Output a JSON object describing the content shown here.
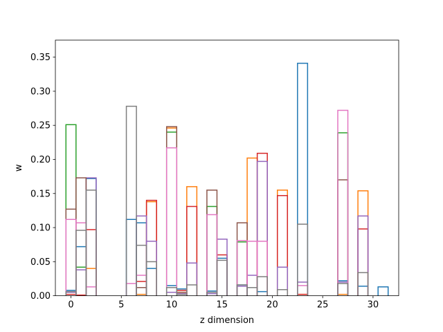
{
  "chart_data": {
    "type": "histogram-step",
    "xlabel": "z dimension",
    "ylabel": "w",
    "xlim": [
      -1.55,
      32.55
    ],
    "ylim": [
      0,
      0.375
    ],
    "xticks": [
      0,
      5,
      10,
      15,
      20,
      25,
      30
    ],
    "xtick_labels": [
      "0",
      "5",
      "10",
      "15",
      "20",
      "25",
      "30"
    ],
    "yticks": [
      0.0,
      0.05,
      0.1,
      0.15,
      0.2,
      0.25,
      0.3,
      0.35
    ],
    "ytick_labels": [
      "0.00",
      "0.05",
      "0.10",
      "0.15",
      "0.20",
      "0.25",
      "0.30",
      "0.35"
    ],
    "bins": [
      0,
      1,
      2,
      3,
      4,
      5,
      6,
      7,
      8,
      9,
      10,
      11,
      12,
      13,
      14,
      15,
      16,
      17,
      18,
      19,
      20,
      21,
      22,
      23,
      24,
      25,
      26,
      27,
      28,
      29,
      30,
      31
    ],
    "series": [
      {
        "color": "#1f77b4",
        "values": [
          0.008,
          0.072,
          0.172,
          0,
          0,
          0,
          0.112,
          0.107,
          0.04,
          0,
          0.015,
          0.01,
          0,
          0,
          0.007,
          0.055,
          0,
          0.016,
          0,
          0.006,
          0,
          0,
          0,
          0.341,
          0,
          0,
          0,
          0.022,
          0,
          0.014,
          0,
          0.013
        ]
      },
      {
        "color": "#ff7f0e",
        "values": [
          0,
          0,
          0.04,
          0,
          0,
          0,
          0,
          0.002,
          0.138,
          0,
          0.246,
          0.005,
          0.16,
          0,
          0,
          0,
          0,
          0,
          0.202,
          0.08,
          0,
          0.155,
          0,
          0.002,
          0,
          0,
          0,
          0.002,
          0,
          0.154,
          0,
          0
        ]
      },
      {
        "color": "#2ca02c",
        "values": [
          0.251,
          0.042,
          0,
          0,
          0,
          0,
          0,
          0.012,
          0,
          0,
          0.24,
          0,
          0,
          0,
          0.131,
          0,
          0,
          0.079,
          0,
          0,
          0,
          0,
          0,
          0,
          0,
          0,
          0,
          0.239,
          0,
          0,
          0,
          0
        ]
      },
      {
        "color": "#d62728",
        "values": [
          0.002,
          0.001,
          0.097,
          0,
          0,
          0,
          0,
          0.021,
          0.14,
          0,
          0,
          0.008,
          0.131,
          0,
          0,
          0.06,
          0,
          0,
          0.08,
          0.209,
          0,
          0.147,
          0,
          0.002,
          0,
          0,
          0,
          0,
          0,
          0.098,
          0,
          0
        ]
      },
      {
        "color": "#9467bd",
        "values": [
          0.005,
          0.038,
          0.173,
          0,
          0,
          0,
          0,
          0.117,
          0.08,
          0,
          0.005,
          0.003,
          0.048,
          0,
          0.003,
          0.083,
          0,
          0.014,
          0.03,
          0.197,
          0,
          0.042,
          0,
          0.02,
          0,
          0,
          0,
          0.02,
          0,
          0.117,
          0,
          0
        ]
      },
      {
        "color": "#8c564b",
        "values": [
          0.127,
          0.173,
          0,
          0,
          0,
          0,
          0,
          0.012,
          0,
          0,
          0.248,
          0.005,
          0,
          0,
          0.155,
          0,
          0,
          0.107,
          0,
          0,
          0,
          0,
          0,
          0,
          0,
          0,
          0,
          0.17,
          0,
          0,
          0,
          0
        ]
      },
      {
        "color": "#e377c2",
        "values": [
          0.112,
          0.107,
          0.013,
          0,
          0,
          0,
          0.018,
          0.03,
          0,
          0,
          0.217,
          0,
          0,
          0,
          0.119,
          0,
          0,
          0.081,
          0.08,
          0.08,
          0,
          0,
          0,
          0.015,
          0,
          0,
          0,
          0.272,
          0,
          0,
          0,
          0
        ]
      },
      {
        "color": "#7f7f7f",
        "values": [
          0.006,
          0.096,
          0.155,
          0,
          0,
          0,
          0.278,
          0.074,
          0.05,
          0,
          0.012,
          0.002,
          0.016,
          0,
          0.005,
          0.052,
          0,
          0.016,
          0.012,
          0.028,
          0,
          0.009,
          0,
          0.105,
          0,
          0,
          0,
          0.018,
          0,
          0.034,
          0,
          0
        ]
      }
    ],
    "grid": false,
    "legend": "none"
  }
}
